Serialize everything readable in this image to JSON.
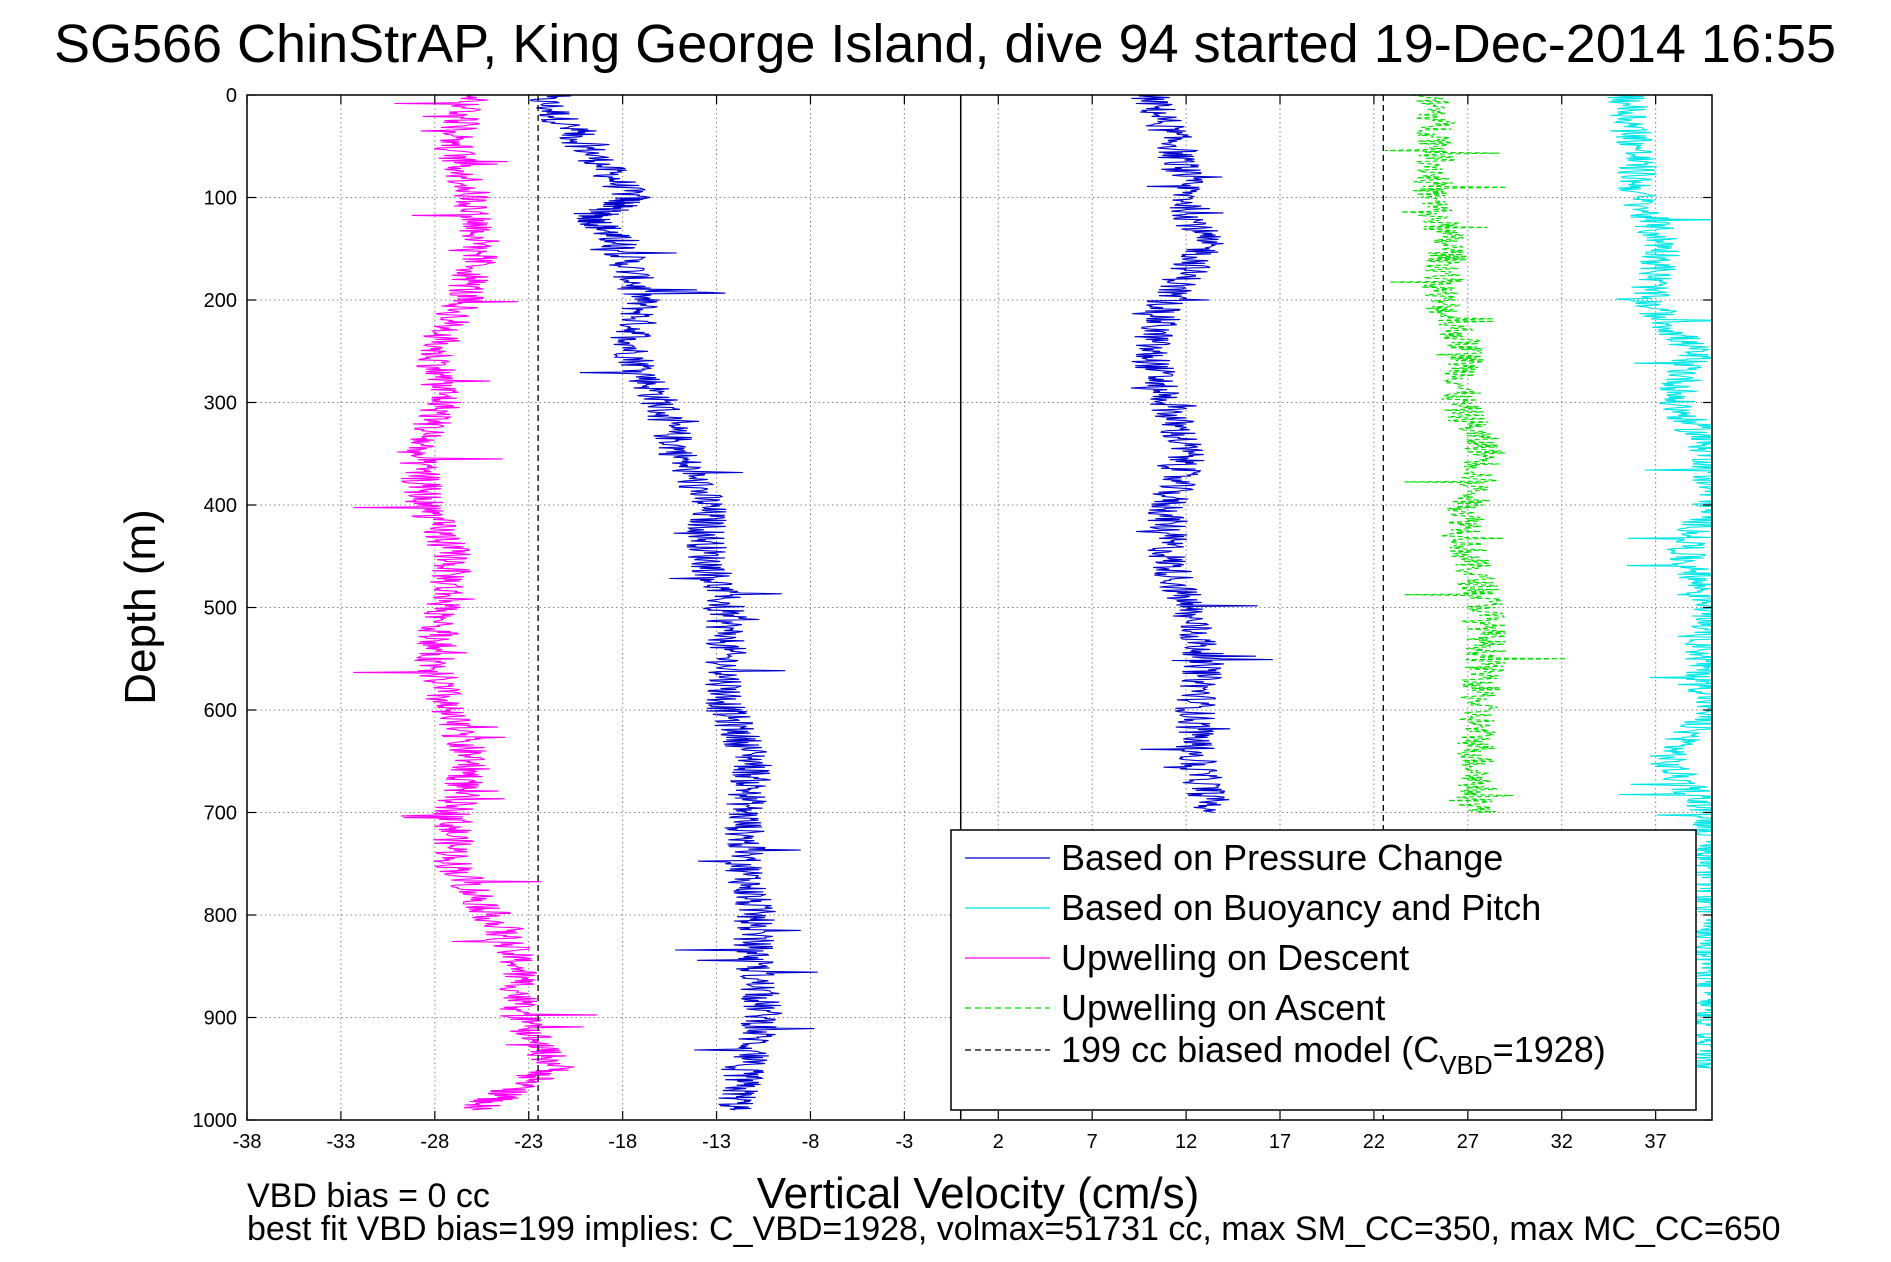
{
  "chart_data": {
    "type": "line",
    "title": "SG566 ChinStrAP, King George Island, dive 94 started 19-Dec-2014 16:55",
    "xlabel": "Vertical Velocity (cm/s)",
    "ylabel": "Depth (m)",
    "xlim": [
      -38,
      40
    ],
    "ylim": [
      0,
      1000
    ],
    "y_reversed": true,
    "grid": true,
    "x_ticks": [
      -38,
      -33,
      -28,
      -23,
      -18,
      -13,
      -8,
      -3,
      2,
      7,
      12,
      17,
      22,
      27,
      32,
      37
    ],
    "y_ticks": [
      0,
      100,
      200,
      300,
      400,
      500,
      600,
      700,
      800,
      900,
      1000
    ],
    "legend_position": "bottom-right",
    "series": [
      {
        "name": "Based on Pressure Change",
        "color": "#0000cc",
        "style": "solid",
        "depth": [
          0,
          50,
          100,
          120,
          150,
          200,
          250,
          300,
          350,
          400,
          450,
          500,
          550,
          600,
          650,
          700,
          750,
          800,
          850,
          900,
          950,
          990
        ],
        "velocity": [
          -22.5,
          -20,
          -17.5,
          -19.5,
          -18,
          -17,
          -17.5,
          -16,
          -15,
          -13.5,
          -13.5,
          -12.5,
          -12.5,
          -12.5,
          -11,
          -11.5,
          -11.5,
          -11,
          -11,
          -10.5,
          -11.5,
          -12
        ]
      },
      {
        "name": "Based on Pressure Change",
        "color": "#0000cc",
        "style": "solid",
        "depth": [
          0,
          50,
          100,
          150,
          200,
          250,
          300,
          350,
          400,
          450,
          500,
          550,
          600,
          650,
          700
        ],
        "velocity": [
          10,
          11.5,
          12,
          13,
          11,
          10,
          11,
          12,
          11,
          11,
          12,
          13,
          12.5,
          12.5,
          13.5
        ]
      },
      {
        "name": "Based on Buoyancy and Pitch",
        "color": "#00e5e5",
        "style": "solid",
        "depth": [
          0,
          50,
          100,
          150,
          200,
          250,
          300,
          350,
          400,
          450,
          500,
          550,
          600,
          650,
          700,
          750,
          800,
          850,
          900,
          950
        ],
        "velocity": [
          35.5,
          36,
          36,
          37.5,
          36.5,
          39,
          38,
          40,
          40,
          38.5,
          40,
          39.5,
          40,
          37.5,
          40,
          40,
          40,
          40,
          40,
          40
        ]
      },
      {
        "name": "Upwelling on Descent",
        "color": "#ff00ff",
        "style": "solid",
        "depth": [
          0,
          50,
          100,
          150,
          200,
          250,
          300,
          350,
          400,
          450,
          500,
          550,
          600,
          650,
          700,
          750,
          800,
          850,
          900,
          950,
          990
        ],
        "velocity": [
          -26,
          -27,
          -26,
          -25.5,
          -26.5,
          -28,
          -27.5,
          -29,
          -28.5,
          -27,
          -27.5,
          -28,
          -27.5,
          -26,
          -27,
          -27,
          -25,
          -23.5,
          -23.5,
          -21.5,
          -26
        ]
      },
      {
        "name": "Upwelling on Ascent",
        "color": "#00dd00",
        "style": "dashed",
        "depth": [
          0,
          50,
          100,
          150,
          200,
          250,
          300,
          350,
          400,
          450,
          500,
          550,
          600,
          650,
          700
        ],
        "velocity": [
          25,
          25.5,
          25,
          26,
          25.5,
          27,
          26.5,
          28,
          27,
          27,
          28,
          28,
          27.5,
          27.5,
          27.5
        ]
      },
      {
        "name": "199 cc biased model (C",
        "name_sub": "VBD",
        "name_suffix": "=1928)",
        "color": "#000000",
        "style": "dashed",
        "depth": [
          0,
          1000
        ],
        "velocity": [
          -22.5,
          -22.5
        ]
      },
      {
        "name": "",
        "color": "#000000",
        "style": "dashed",
        "depth": [
          0,
          1000
        ],
        "velocity": [
          22.5,
          22.5
        ]
      }
    ],
    "annotations": [
      "VBD bias = 0 cc",
      "best fit VBD bias=199 implies: C_VBD=1928, volmax=51731 cc, max SM_CC=350, max MC_CC=650"
    ]
  }
}
